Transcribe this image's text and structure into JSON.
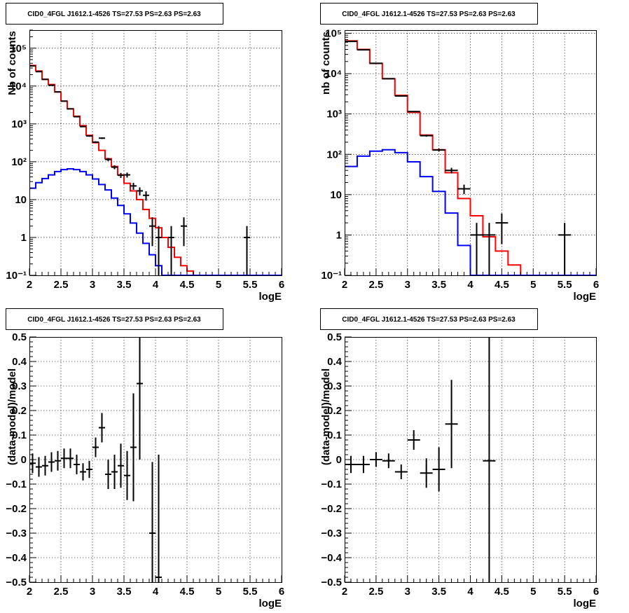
{
  "chart_data": [
    {
      "id": "counts-left",
      "type": "step",
      "title": "CID0_4FGL J1612.1-4526 TS=27.53 PS=2.63 PS=2.63",
      "xlabel": "logE",
      "ylabel": "Nb of counts",
      "xlim": [
        2,
        6
      ],
      "ylim": [
        0.1,
        300000
      ],
      "yscale": "log",
      "grid": true,
      "xticks": [
        2,
        2.5,
        3,
        3.5,
        4,
        4.5,
        5,
        5.5,
        6
      ],
      "xtick_labels": [
        "2",
        "2.5",
        "3",
        "3.5",
        "4",
        "4.5",
        "5",
        "5.5",
        "6"
      ],
      "yticks": [
        0.1,
        1,
        10,
        100,
        1000,
        10000,
        100000
      ],
      "ytick_labels": [
        "10⁻¹",
        "1",
        "10",
        "10²",
        "10³",
        "10⁴",
        "10⁵"
      ],
      "bin_edges": [
        2.0,
        2.1,
        2.2,
        2.3,
        2.4,
        2.5,
        2.6,
        2.7,
        2.8,
        2.9,
        3.0,
        3.1,
        3.2,
        3.3,
        3.4,
        3.5,
        3.6,
        3.7,
        3.8,
        3.9,
        4.0,
        4.1,
        4.2,
        4.3,
        4.4,
        4.5,
        4.6,
        4.7,
        4.8,
        4.9,
        5.0,
        5.1,
        5.2,
        5.3,
        5.4,
        5.5,
        5.6,
        5.7,
        5.8,
        5.9,
        6.0
      ],
      "series": [
        {
          "color": "#ff0000",
          "values": [
            35000,
            25000,
            15000,
            11000,
            7000,
            4000,
            2500,
            1600,
            900,
            500,
            320,
            200,
            120,
            75,
            45,
            27,
            17,
            10,
            5.5,
            3.2,
            1.8,
            1.0,
            0.55,
            0.3,
            0.18,
            0.13,
            0.1,
            0.1,
            0.1,
            0.1,
            0.1,
            0.1,
            0.1,
            0.1,
            0.1,
            0.1,
            0.1,
            0.1,
            0.1,
            0.1
          ]
        },
        {
          "color": "#0000ff",
          "values": [
            20,
            28,
            36,
            45,
            55,
            62,
            65,
            62,
            55,
            45,
            35,
            25,
            18,
            11,
            7,
            4.2,
            2.4,
            1.3,
            0.7,
            0.35,
            0.18,
            0.1,
            0.1,
            0.1,
            0.1,
            0.1,
            0.1,
            0.1,
            0.1,
            0.1,
            0.1,
            0.1,
            0.1,
            0.1,
            0.1,
            0.1,
            0.1,
            0.1,
            0.1,
            0.1
          ]
        }
      ],
      "points": [
        {
          "x": 2.05,
          "y": 34000,
          "yerr": 180,
          "xerr": 0.05
        },
        {
          "x": 2.15,
          "y": 24000,
          "yerr": 150,
          "xerr": 0.05
        },
        {
          "x": 2.25,
          "y": 15000,
          "yerr": 120,
          "xerr": 0.05
        },
        {
          "x": 2.35,
          "y": 10500,
          "yerr": 100,
          "xerr": 0.05
        },
        {
          "x": 2.45,
          "y": 7000,
          "yerr": 80,
          "xerr": 0.05
        },
        {
          "x": 2.55,
          "y": 4000,
          "yerr": 60,
          "xerr": 0.05
        },
        {
          "x": 2.65,
          "y": 2500,
          "yerr": 50,
          "xerr": 0.05
        },
        {
          "x": 2.75,
          "y": 1550,
          "yerr": 40,
          "xerr": 0.05
        },
        {
          "x": 2.85,
          "y": 850,
          "yerr": 29,
          "xerr": 0.05
        },
        {
          "x": 2.95,
          "y": 480,
          "yerr": 22,
          "xerr": 0.05
        },
        {
          "x": 3.05,
          "y": 330,
          "yerr": 18,
          "xerr": 0.05
        },
        {
          "x": 3.15,
          "y": 420,
          "yerr": 20,
          "xerr": 0.05
        },
        {
          "x": 3.25,
          "y": 115,
          "yerr": 11,
          "xerr": 0.05
        },
        {
          "x": 3.35,
          "y": 72,
          "yerr": 8.5,
          "xerr": 0.05
        },
        {
          "x": 3.45,
          "y": 44,
          "yerr": 6.6,
          "xerr": 0.05
        },
        {
          "x": 3.55,
          "y": 45,
          "yerr": 6.7,
          "xerr": 0.05
        },
        {
          "x": 3.65,
          "y": 23,
          "yerr": 4.8,
          "xerr": 0.05
        },
        {
          "x": 3.75,
          "y": 17,
          "yerr": 4.1,
          "xerr": 0.05
        },
        {
          "x": 3.85,
          "y": 13,
          "yerr": 3.6,
          "xerr": 0.05
        },
        {
          "x": 3.95,
          "y": 2,
          "yerr": 1.41,
          "xerr": 0.05
        },
        {
          "x": 4.05,
          "y": 1,
          "yerr": 1,
          "xerr": 0.05
        },
        {
          "x": 4.25,
          "y": 1,
          "yerr": 1,
          "xerr": 0.05
        },
        {
          "x": 4.45,
          "y": 2,
          "yerr": 1.41,
          "xerr": 0.05
        },
        {
          "x": 5.45,
          "y": 1,
          "yerr": 1,
          "xerr": 0.05
        }
      ]
    },
    {
      "id": "counts-right",
      "type": "step",
      "title": "CID0_4FGL J1612.1-4526 TS=27.53 PS=2.63 PS=2.63",
      "xlabel": "logE",
      "ylabel": "nb of counts",
      "xlim": [
        2,
        6
      ],
      "ylim": [
        0.1,
        120000
      ],
      "yscale": "log",
      "grid": true,
      "xticks": [
        2,
        2.5,
        3,
        3.5,
        4,
        4.5,
        5,
        5.5,
        6
      ],
      "xtick_labels": [
        "2",
        "2.5",
        "3",
        "3.5",
        "4",
        "4.5",
        "5",
        "5.5",
        "6"
      ],
      "yticks": [
        0.1,
        1,
        10,
        100,
        1000,
        10000,
        100000
      ],
      "ytick_labels": [
        "10⁻¹",
        "1",
        "10",
        "10²",
        "10³",
        "10⁴",
        "10⁵"
      ],
      "bin_edges": [
        2.0,
        2.2,
        2.4,
        2.6,
        2.8,
        3.0,
        3.2,
        3.4,
        3.6,
        3.8,
        4.0,
        4.2,
        4.4,
        4.6,
        4.8,
        5.0,
        5.2,
        5.4,
        5.6,
        5.8,
        6.0
      ],
      "series": [
        {
          "color": "#ff0000",
          "values": [
            65000,
            40000,
            18000,
            7500,
            2900,
            1100,
            300,
            130,
            35,
            8,
            3,
            0.9,
            0.4,
            0.18,
            0.1,
            0.1,
            0.1,
            0.1,
            0.1,
            0.1
          ]
        },
        {
          "color": "#0000ff",
          "values": [
            50,
            90,
            120,
            130,
            110,
            65,
            28,
            12,
            3.5,
            0.55,
            0.1,
            0.1,
            0.1,
            0.1,
            0.1,
            0.1,
            0.1,
            0.1,
            0.1,
            0.1
          ]
        }
      ],
      "points": [
        {
          "x": 2.1,
          "y": 63000,
          "yerr": 250,
          "xerr": 0.1
        },
        {
          "x": 2.3,
          "y": 39000,
          "yerr": 200,
          "xerr": 0.1
        },
        {
          "x": 2.5,
          "y": 18000,
          "yerr": 134,
          "xerr": 0.1
        },
        {
          "x": 2.7,
          "y": 7500,
          "yerr": 87,
          "xerr": 0.1
        },
        {
          "x": 2.9,
          "y": 2800,
          "yerr": 53,
          "xerr": 0.1
        },
        {
          "x": 3.1,
          "y": 1150,
          "yerr": 34,
          "xerr": 0.1
        },
        {
          "x": 3.3,
          "y": 290,
          "yerr": 17,
          "xerr": 0.1
        },
        {
          "x": 3.5,
          "y": 128,
          "yerr": 11,
          "xerr": 0.1
        },
        {
          "x": 3.7,
          "y": 40,
          "yerr": 6.3,
          "xerr": 0.1
        },
        {
          "x": 3.9,
          "y": 14,
          "yerr": 3.7,
          "xerr": 0.1
        },
        {
          "x": 4.1,
          "y": 1,
          "yerr": 1,
          "xerr": 0.1
        },
        {
          "x": 4.3,
          "y": 1,
          "yerr": 1,
          "xerr": 0.1
        },
        {
          "x": 4.5,
          "y": 2,
          "yerr": 1.41,
          "xerr": 0.1
        },
        {
          "x": 5.5,
          "y": 1,
          "yerr": 1,
          "xerr": 0.1
        }
      ]
    },
    {
      "id": "residuals-left",
      "type": "scatter",
      "title": "CID0_4FGL J1612.1-4526 TS=27.53 PS=2.63 PS=2.63",
      "xlabel": "logE",
      "ylabel": "(data-model)/model",
      "xlim": [
        2,
        6
      ],
      "ylim": [
        -0.5,
        0.5
      ],
      "yscale": "linear",
      "grid": true,
      "xticks": [
        2,
        2.5,
        3,
        3.5,
        4,
        4.5,
        5,
        5.5,
        6
      ],
      "xtick_labels": [
        "2",
        "2.5",
        "3",
        "3.5",
        "4",
        "4.5",
        "5",
        "5.5",
        "6"
      ],
      "yticks": [
        -0.5,
        -0.4,
        -0.3,
        -0.2,
        -0.1,
        0,
        0.1,
        0.2,
        0.3,
        0.4,
        0.5
      ],
      "ytick_labels": [
        "−0.5",
        "−0.4",
        "−0.3",
        "−0.2",
        "−0.1",
        "0",
        "0.1",
        "0.2",
        "0.3",
        "0.4",
        "0.5"
      ],
      "points": [
        {
          "x": 2.05,
          "y": -0.015,
          "yerr": 0.04,
          "xerr": 0.05
        },
        {
          "x": 2.15,
          "y": -0.03,
          "yerr": 0.04,
          "xerr": 0.05
        },
        {
          "x": 2.25,
          "y": -0.025,
          "yerr": 0.04,
          "xerr": 0.05
        },
        {
          "x": 2.35,
          "y": -0.01,
          "yerr": 0.04,
          "xerr": 0.05
        },
        {
          "x": 2.45,
          "y": -0.005,
          "yerr": 0.04,
          "xerr": 0.05
        },
        {
          "x": 2.55,
          "y": 0.005,
          "yerr": 0.04,
          "xerr": 0.05
        },
        {
          "x": 2.65,
          "y": 0.005,
          "yerr": 0.04,
          "xerr": 0.05
        },
        {
          "x": 2.75,
          "y": -0.02,
          "yerr": 0.04,
          "xerr": 0.05
        },
        {
          "x": 2.85,
          "y": -0.05,
          "yerr": 0.035,
          "xerr": 0.05
        },
        {
          "x": 2.95,
          "y": -0.04,
          "yerr": 0.035,
          "xerr": 0.05
        },
        {
          "x": 3.05,
          "y": 0.05,
          "yerr": 0.04,
          "xerr": 0.05
        },
        {
          "x": 3.15,
          "y": 0.13,
          "yerr": 0.06,
          "xerr": 0.05
        },
        {
          "x": 3.25,
          "y": -0.06,
          "yerr": 0.06,
          "xerr": 0.05
        },
        {
          "x": 3.35,
          "y": -0.05,
          "yerr": 0.07,
          "xerr": 0.05
        },
        {
          "x": 3.45,
          "y": -0.025,
          "yerr": 0.09,
          "xerr": 0.05
        },
        {
          "x": 3.55,
          "y": -0.065,
          "yerr": 0.1,
          "xerr": 0.05
        },
        {
          "x": 3.65,
          "y": 0.05,
          "yerr": 0.22,
          "xerr": 0.05
        },
        {
          "x": 3.75,
          "y": 0.31,
          "yerr": 0.31,
          "xerr": 0.05
        },
        {
          "x": 3.95,
          "y": -0.3,
          "yerr": 0.29,
          "xerr": 0.05
        },
        {
          "x": 4.05,
          "y": -0.48,
          "yerr": 0.5,
          "xerr": 0.05
        }
      ]
    },
    {
      "id": "residuals-right",
      "type": "scatter",
      "title": "CID0_4FGL J1612.1-4526 TS=27.53 PS=2.63 PS=2.63",
      "xlabel": "logE",
      "ylabel": "(data-model)/model",
      "xlim": [
        2,
        6
      ],
      "ylim": [
        -0.5,
        0.5
      ],
      "yscale": "linear",
      "grid": true,
      "xticks": [
        2,
        2.5,
        3,
        3.5,
        4,
        4.5,
        5,
        5.5,
        6
      ],
      "xtick_labels": [
        "2",
        "2.5",
        "3",
        "3.5",
        "4",
        "4.5",
        "5",
        "5.5",
        "6"
      ],
      "yticks": [
        -0.5,
        -0.4,
        -0.3,
        -0.2,
        -0.1,
        0,
        0.1,
        0.2,
        0.3,
        0.4,
        0.5
      ],
      "ytick_labels": [
        "−0.5",
        "−0.4",
        "−0.3",
        "−0.2",
        "−0.1",
        "0",
        "0.1",
        "0.2",
        "0.3",
        "0.4",
        "0.5"
      ],
      "points": [
        {
          "x": 2.1,
          "y": -0.02,
          "yerr": 0.035,
          "xerr": 0.1
        },
        {
          "x": 2.3,
          "y": -0.02,
          "yerr": 0.035,
          "xerr": 0.1
        },
        {
          "x": 2.5,
          "y": 0.0,
          "yerr": 0.03,
          "xerr": 0.1
        },
        {
          "x": 2.7,
          "y": -0.005,
          "yerr": 0.03,
          "xerr": 0.1
        },
        {
          "x": 2.9,
          "y": -0.05,
          "yerr": 0.03,
          "xerr": 0.1
        },
        {
          "x": 3.1,
          "y": 0.08,
          "yerr": 0.04,
          "xerr": 0.1
        },
        {
          "x": 3.3,
          "y": -0.055,
          "yerr": 0.06,
          "xerr": 0.1
        },
        {
          "x": 3.5,
          "y": -0.04,
          "yerr": 0.09,
          "xerr": 0.1
        },
        {
          "x": 3.7,
          "y": 0.145,
          "yerr": 0.18,
          "xerr": 0.1
        },
        {
          "x": 4.3,
          "y": -0.005,
          "yerr": 0.6,
          "xerr": 0.1
        }
      ]
    }
  ]
}
